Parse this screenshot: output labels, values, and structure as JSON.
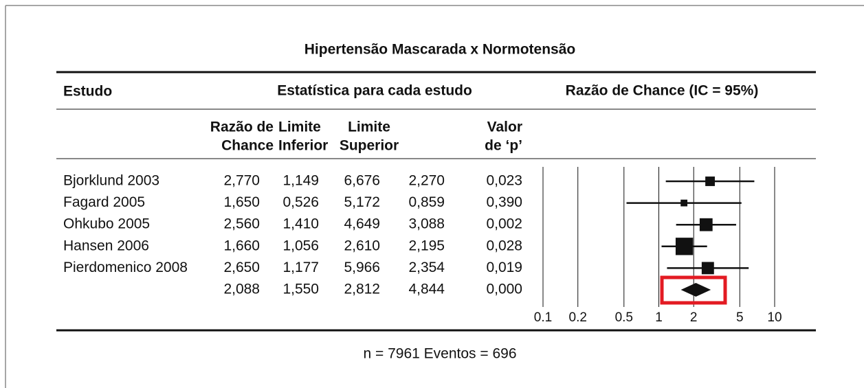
{
  "title": "Hipertensão Mascarada x Normotensão",
  "headers": {
    "study": "Estudo",
    "stats": "Estatística para cada estudo",
    "plot": "Razão de Chance (IC = 95%)"
  },
  "columns": [
    [
      "Razão de",
      "Chance"
    ],
    [
      "Limite",
      "Inferior"
    ],
    [
      "Limite",
      "Superior"
    ],
    [
      "Valor",
      "de ‘p’"
    ]
  ],
  "rows": [
    {
      "study": "Bjorklund 2003",
      "cells": [
        "2,770",
        "1,149",
        "6,676",
        "2,270",
        "0,023"
      ]
    },
    {
      "study": "Fagard 2005",
      "cells": [
        "1,650",
        "0,526",
        "5,172",
        "0,859",
        "0,390"
      ]
    },
    {
      "study": "Ohkubo 2005",
      "cells": [
        "2,560",
        "1,410",
        "4,649",
        "3,088",
        "0,002"
      ]
    },
    {
      "study": "Hansen 2006",
      "cells": [
        "1,660",
        "1,056",
        "2,610",
        "2,195",
        "0,028"
      ]
    },
    {
      "study": "Pierdomenico 2008",
      "cells": [
        "2,650",
        "1,177",
        "5,966",
        "2,354",
        "0,019"
      ]
    },
    {
      "study": null,
      "cells": [
        "2,088",
        "1,550",
        "2,812",
        "4,844",
        "0,000"
      ]
    }
  ],
  "footer": "n = 7961 Eventos = 696",
  "chart_data": {
    "type": "forest",
    "values": [
      2.77,
      1.65,
      2.56,
      1.66,
      2.65,
      2.088
    ],
    "lower": [
      1.149,
      0.526,
      1.41,
      1.056,
      1.177,
      1.55
    ],
    "upper": [
      6.676,
      5.172,
      4.649,
      2.61,
      5.966,
      2.812
    ],
    "weights": [
      12,
      6,
      22,
      40,
      20
    ],
    "xlim": [
      0.1,
      10
    ],
    "xticks": [
      0.1,
      0.2,
      0.5,
      1,
      2,
      5,
      10
    ],
    "xscale": "log",
    "color": "#111111",
    "highlight_color": "#e31b23"
  }
}
